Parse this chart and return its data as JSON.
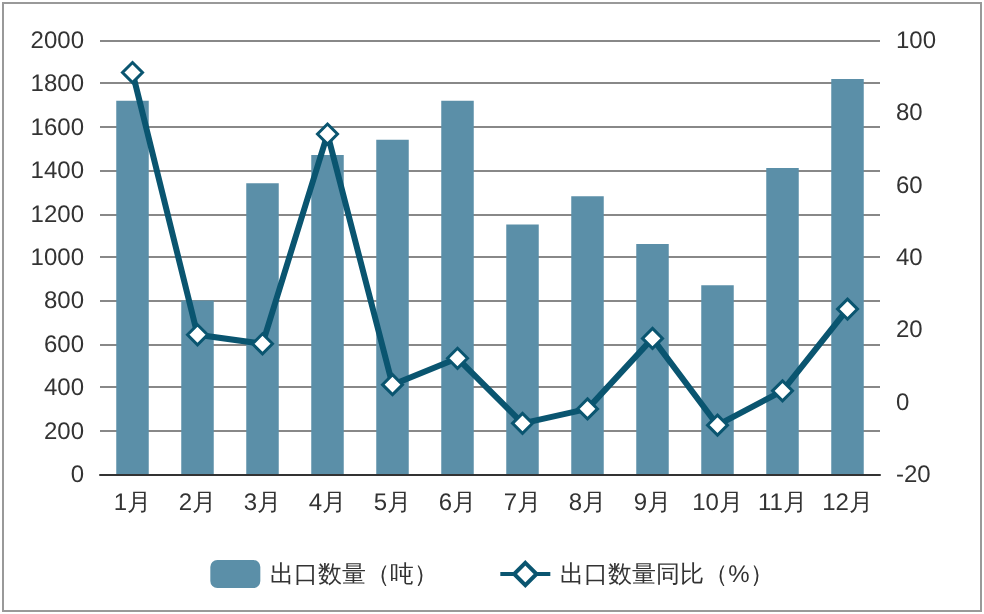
{
  "chart_data": {
    "type": "bar",
    "categories": [
      "1月",
      "2月",
      "3月",
      "4月",
      "5月",
      "6月",
      "7月",
      "8月",
      "9月",
      "10月",
      "11月",
      "12月"
    ],
    "series": [
      {
        "name": "出口数量（吨）",
        "color": "#5b8fa8",
        "values": [
          1720,
          800,
          1340,
          1470,
          1540,
          1720,
          1150,
          1280,
          1060,
          870,
          1410,
          1820
        ]
      },
      {
        "name": "出口数量同比（%）",
        "type": "line",
        "axis": "y2",
        "color": "#0a5570",
        "values": [
          91,
          18.5,
          16,
          74,
          4.7,
          12,
          -6,
          -2,
          17.5,
          -6.5,
          3,
          25.6
        ]
      }
    ],
    "ylim": [
      0,
      2000
    ],
    "yticks": [
      0,
      200,
      400,
      600,
      800,
      1000,
      1200,
      1400,
      1600,
      1800,
      2000
    ],
    "y2lim": [
      -20,
      100
    ],
    "y2ticks": [
      -20,
      0,
      20,
      40,
      60,
      80,
      100
    ],
    "grid": "y",
    "legend": "bottom",
    "marker": "diamond",
    "line_style": "solid"
  }
}
